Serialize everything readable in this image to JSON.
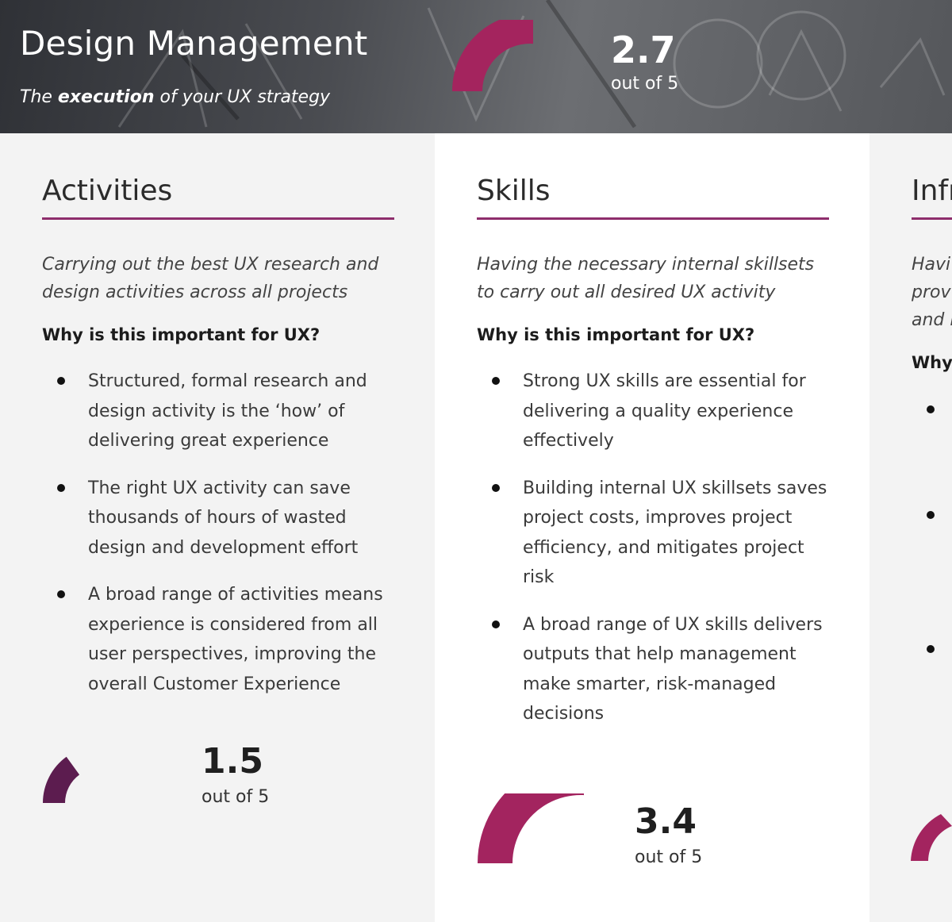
{
  "header": {
    "title": "Design Management",
    "subtitle_pre": "The ",
    "subtitle_bold": "execution",
    "subtitle_post": " of your UX strategy",
    "score": "2.7",
    "score_fraction": 0.54,
    "out_of": "out of 5"
  },
  "columns": [
    {
      "title": "Activities",
      "description": "Carrying out the best UX research and design activities across all projects",
      "why": "Why is this important for UX?",
      "bullets": [
        "Structured, formal research and design activity is the ‘how’ of delivering great experience",
        "The right UX activity can save thousands of hours of wasted design and development effort",
        "A broad range of activities means experience is considered from all user perspectives, improving the overall Customer Experience"
      ],
      "score": "1.5",
      "score_fraction": 0.3,
      "out_of": "out of 5"
    },
    {
      "title": "Skills",
      "description": "Having the necessary internal skillsets to carry out all desired UX activity",
      "why": "Why is this important for UX?",
      "bullets": [
        "Strong UX skills are essential for delivering a quality experience effectively",
        "Building internal UX skillsets saves project costs, improves project efficiency, and mitigates project risk",
        "A broad range of UX skills delivers outputs that help management make smarter, risk-managed decisions"
      ],
      "score": "3.4",
      "score_fraction": 0.68,
      "out_of": "out of 5"
    },
    {
      "title": "Infr",
      "description_lines": [
        "Havi",
        "prov",
        "and i"
      ],
      "why": "Why"
    }
  ],
  "colors": {
    "accent": "#8e2d6c",
    "gauge_header": "#a4245e",
    "gauge_activities": "#5c1c4f",
    "gauge_skills": "#a3245f"
  }
}
